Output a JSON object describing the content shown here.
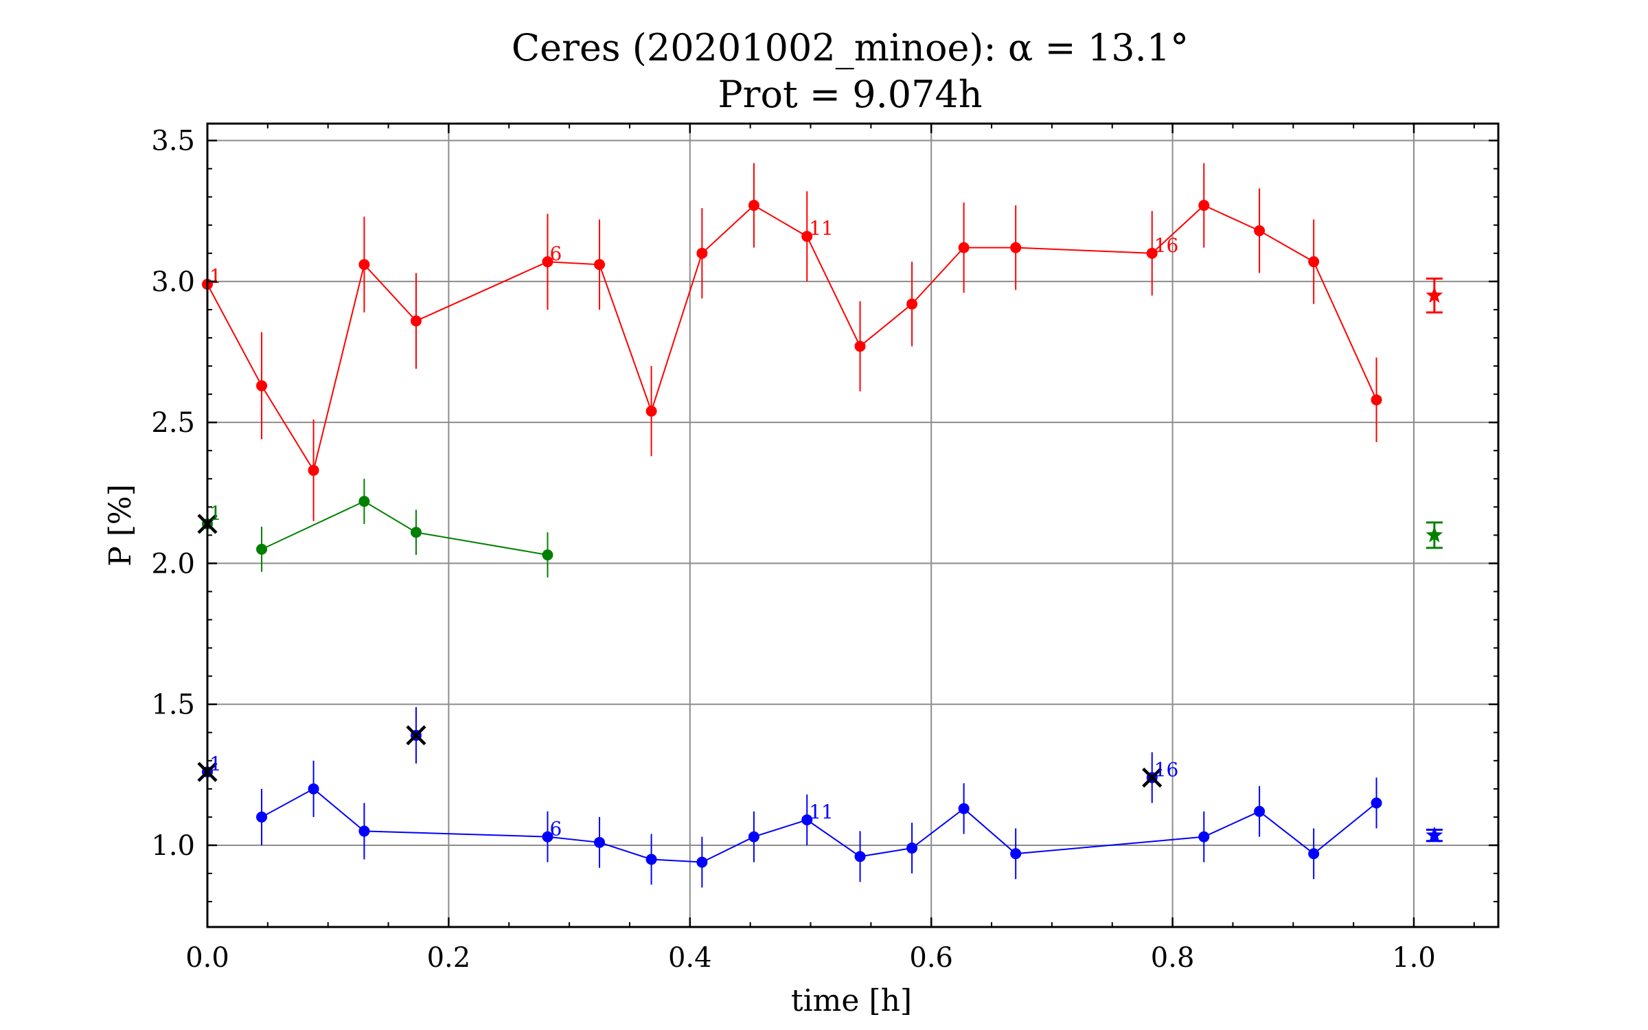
{
  "chart_data": {
    "type": "scatter",
    "title": "Ceres (20201002_minoe): α = 13.1°",
    "subtitle": "Prot = 9.074h",
    "xlabel": "time [h]",
    "ylabel": "P [%]",
    "xlim": [
      0.0,
      1.07
    ],
    "ylim": [
      0.71,
      3.56
    ],
    "xticks": [
      0.0,
      0.2,
      0.4,
      0.6,
      0.8,
      1.0
    ],
    "xtick_labels": [
      "0.0",
      "0.2",
      "0.4",
      "0.6",
      "0.8",
      "1.0"
    ],
    "yticks": [
      1.0,
      1.5,
      2.0,
      2.5,
      3.0,
      3.5
    ],
    "ytick_labels": [
      "1.0",
      "1.5",
      "2.0",
      "2.5",
      "3.0",
      "3.5"
    ],
    "grid": true,
    "series": [
      {
        "color": "#ff0000",
        "x": [
          0.0,
          0.045,
          0.088,
          0.13,
          0.173,
          0.282,
          0.325,
          0.368,
          0.41,
          0.453,
          0.497,
          0.541,
          0.584,
          0.627,
          0.67,
          0.783,
          0.826,
          0.872,
          0.917,
          0.969
        ],
        "y": [
          2.99,
          2.63,
          2.33,
          3.06,
          2.86,
          3.07,
          3.06,
          2.54,
          3.1,
          3.27,
          3.16,
          2.77,
          2.92,
          3.12,
          3.12,
          3.1,
          3.27,
          3.18,
          3.07,
          2.58
        ],
        "err": [
          0.17,
          0.19,
          0.18,
          0.17,
          0.17,
          0.17,
          0.16,
          0.16,
          0.16,
          0.15,
          0.16,
          0.16,
          0.15,
          0.16,
          0.15,
          0.15,
          0.15,
          0.15,
          0.15,
          0.15
        ],
        "point_labels": [
          {
            "index": 0,
            "text": "1"
          },
          {
            "index": 5,
            "text": "6"
          },
          {
            "index": 10,
            "text": "11"
          },
          {
            "index": 15,
            "text": "16"
          }
        ],
        "summary": {
          "x": 1.017,
          "y": 2.95,
          "err": 0.06
        }
      },
      {
        "color": "#008000",
        "x": [
          0.045,
          0.13,
          0.173,
          0.282
        ],
        "y": [
          2.05,
          2.22,
          2.11,
          2.03
        ],
        "err": [
          0.08,
          0.08,
          0.08,
          0.08
        ],
        "point_labels": [
          {
            "index": -1,
            "x": 0.0,
            "y": 2.15,
            "text": "1"
          }
        ],
        "summary": {
          "x": 1.017,
          "y": 2.1,
          "err": 0.045
        }
      },
      {
        "color": "#0000ff",
        "x": [
          0.045,
          0.088,
          0.13,
          0.282,
          0.325,
          0.368,
          0.41,
          0.453,
          0.497,
          0.541,
          0.584,
          0.627,
          0.67,
          0.826,
          0.872,
          0.917,
          0.969
        ],
        "y": [
          1.1,
          1.2,
          1.05,
          1.03,
          1.01,
          0.95,
          0.94,
          1.03,
          1.09,
          0.96,
          0.99,
          1.13,
          0.97,
          1.03,
          1.12,
          0.97,
          1.15
        ],
        "err": [
          0.1,
          0.1,
          0.1,
          0.09,
          0.09,
          0.09,
          0.09,
          0.09,
          0.09,
          0.09,
          0.09,
          0.09,
          0.09,
          0.09,
          0.09,
          0.09,
          0.09
        ],
        "point_labels": [
          {
            "index": -1,
            "x": 0.0,
            "y": 1.26,
            "text": "1"
          },
          {
            "index": 3,
            "text": "6"
          },
          {
            "index": 8,
            "text": "11"
          },
          {
            "index": -1,
            "x": 0.783,
            "y": 1.24,
            "text": "16"
          }
        ],
        "summary": {
          "x": 1.017,
          "y": 1.035,
          "err": 0.02
        }
      }
    ],
    "excluded_points": [
      {
        "x": 0.0,
        "y": 2.14,
        "color": "#008000"
      },
      {
        "x": 0.0,
        "y": 1.26,
        "color": "#0000ff"
      },
      {
        "x": 0.173,
        "y": 1.39,
        "color": "#0000ff",
        "err": 0.1
      },
      {
        "x": 0.783,
        "y": 1.24,
        "color": "#0000ff",
        "err": 0.09
      }
    ]
  }
}
